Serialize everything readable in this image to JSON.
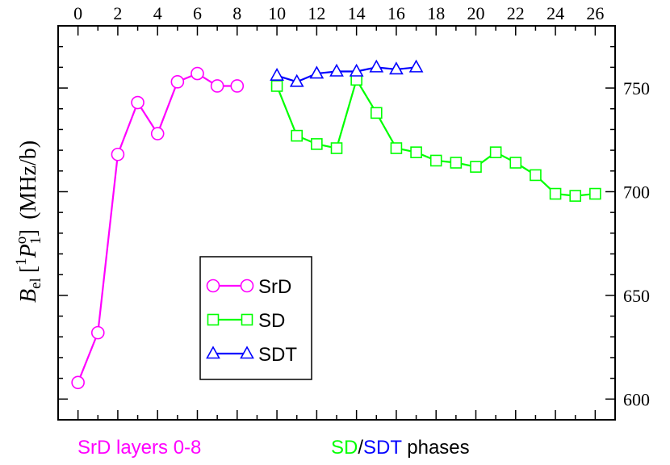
{
  "chart_data": {
    "type": "line",
    "ylabel": {
      "symbol": "B",
      "sub": "el",
      "bracket_open": "[",
      "term_sup": "1",
      "term_letter": "P",
      "term_sup2": "o",
      "term_sub": "1",
      "bracket_close": "]",
      "unit": "(MHz/b)"
    },
    "x_ticks": [
      "0",
      "2",
      "4",
      "6",
      "8",
      "10",
      "12",
      "14",
      "16",
      "18",
      "20",
      "22",
      "24",
      "26"
    ],
    "x_range": [
      -1,
      27
    ],
    "y_range": [
      590,
      780
    ],
    "y_ticks": [
      "600",
      "650",
      "700",
      "750"
    ],
    "series": [
      {
        "name": "SrD",
        "color": "#ff00ff",
        "marker": "circle",
        "x": [
          0,
          1,
          2,
          3,
          4,
          5,
          6,
          7,
          8
        ],
        "y": [
          608,
          632,
          718,
          743,
          728,
          753,
          757,
          751,
          751
        ]
      },
      {
        "name": "SD",
        "color": "#00ff00",
        "marker": "square",
        "x": [
          10,
          11,
          12,
          13,
          14,
          15,
          16,
          17,
          18,
          19,
          20,
          21,
          22,
          23,
          24,
          25,
          26
        ],
        "y": [
          751,
          727,
          723,
          721,
          754,
          738,
          721,
          719,
          715,
          714,
          712,
          719,
          714,
          708,
          699,
          698,
          699
        ]
      },
      {
        "name": "SDT",
        "color": "#0000ff",
        "marker": "triangle",
        "x": [
          10,
          11,
          12,
          13,
          14,
          15,
          16,
          17
        ],
        "y": [
          756,
          753,
          757,
          758,
          758,
          760,
          759,
          760
        ]
      }
    ],
    "bottom_labels": {
      "srd": {
        "text": "SrD layers 0-8",
        "color": "#ff00ff"
      },
      "sd": {
        "text": "SD",
        "color": "#00ff00"
      },
      "slash": "/",
      "sdt": {
        "text": "SDT",
        "color": "#0000ff"
      },
      "phases": " phases"
    }
  }
}
